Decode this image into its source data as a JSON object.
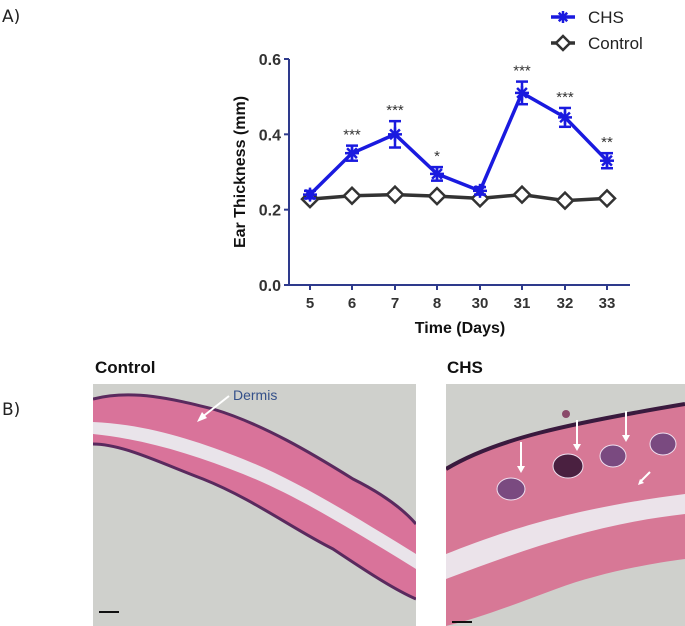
{
  "panels": {
    "a_label": "A)",
    "b_label": "B)"
  },
  "chart_data": {
    "type": "line",
    "title": "",
    "xlabel": "Time (Days)",
    "ylabel": "Ear Thickness (mm)",
    "categories": [
      "5",
      "6",
      "7",
      "8",
      "30",
      "31",
      "32",
      "33"
    ],
    "ylim": [
      0.0,
      0.6
    ],
    "yticks": [
      "0.0",
      "0.2",
      "0.4",
      "0.6"
    ],
    "grid": false,
    "legend_position": "top-right",
    "series": [
      {
        "name": "CHS",
        "color": "#1a1adf",
        "marker": "asterisk",
        "values": [
          0.24,
          0.35,
          0.4,
          0.295,
          0.25,
          0.51,
          0.445,
          0.33
        ],
        "errors": [
          0.01,
          0.02,
          0.035,
          0.018,
          0.01,
          0.03,
          0.025,
          0.02
        ],
        "significance": [
          "",
          "***",
          "***",
          "*",
          "",
          "***",
          "***",
          "**"
        ]
      },
      {
        "name": "Control",
        "color": "#333333",
        "marker": "diamond",
        "values": [
          0.228,
          0.237,
          0.24,
          0.236,
          0.23,
          0.24,
          0.224,
          0.23
        ],
        "errors": [
          0.005,
          0.005,
          0.005,
          0.005,
          0.005,
          0.005,
          0.005,
          0.005
        ]
      }
    ],
    "axis_color": "#2e3a8c"
  },
  "histology": {
    "control_title": "Control",
    "chs_title": "CHS",
    "dermis_label": "Dermis"
  }
}
